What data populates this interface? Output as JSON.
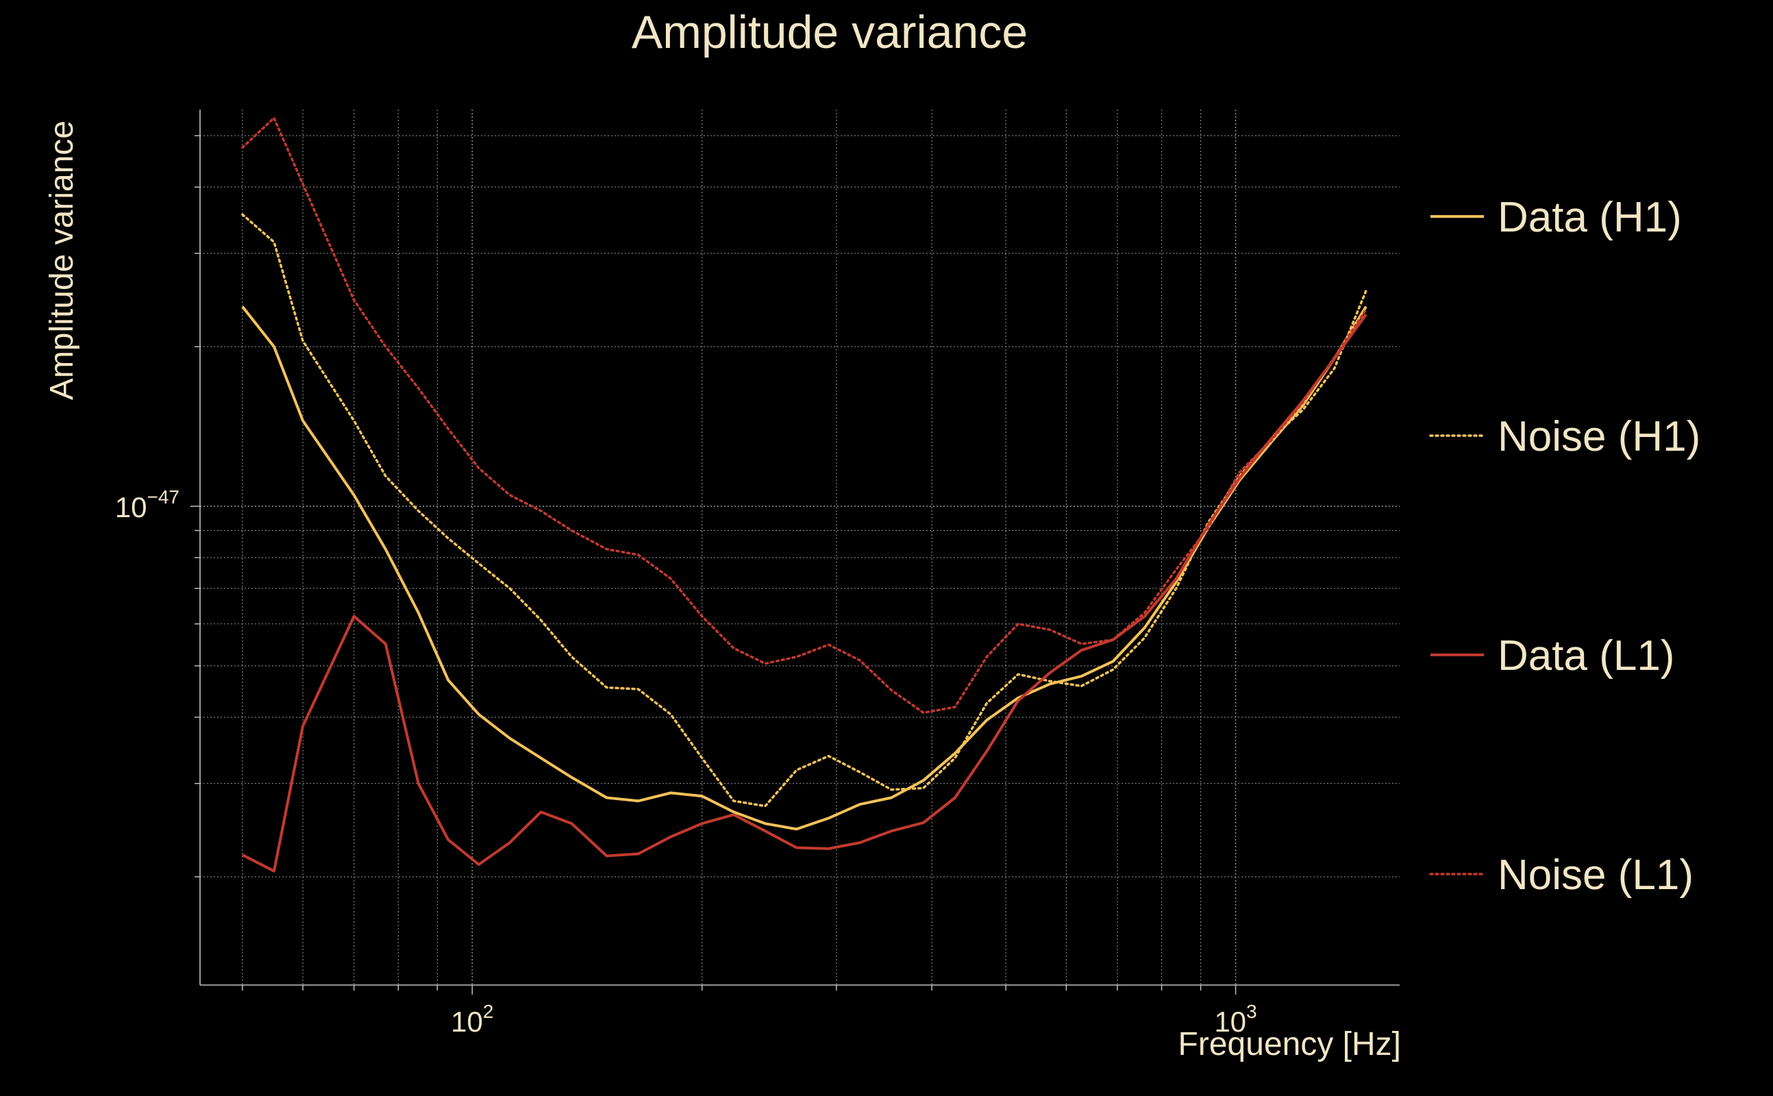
{
  "chart_data": {
    "type": "line",
    "title": "Amplitude variance",
    "xlabel": "Frequency [Hz]",
    "ylabel": "Amplitude variance",
    "x_scale": "log",
    "y_scale": "log",
    "xlim": [
      44,
      1640
    ],
    "ylim": [
      1.25e-48,
      5.6e-47
    ],
    "grid": true,
    "legend_position": "right",
    "x_ticks": [
      {
        "value": 100,
        "base": "10",
        "exp": "2"
      },
      {
        "value": 1000,
        "base": "10",
        "exp": "3"
      }
    ],
    "y_ticks": [
      {
        "value": 1e-47,
        "base": "10",
        "exp": "−47"
      }
    ],
    "x": [
      50,
      55,
      60,
      70,
      77,
      85,
      93,
      102,
      112,
      123,
      135,
      150,
      165,
      182,
      200,
      220,
      242,
      266,
      293,
      322,
      354,
      390,
      429,
      472,
      519,
      571,
      628,
      691,
      760,
      836,
      920,
      1012,
      1113,
      1225,
      1347,
      1482
    ],
    "series": [
      {
        "name": "Data (H1)",
        "color": "#f2c25a",
        "dash": "solid",
        "values": [
          2.38e-47,
          2e-47,
          1.45e-47,
          1.05e-47,
          8.3e-48,
          6.3e-48,
          4.7e-48,
          4.05e-48,
          3.65e-48,
          3.35e-48,
          3.08e-48,
          2.82e-48,
          2.78e-48,
          2.88e-48,
          2.84e-48,
          2.65e-48,
          2.52e-48,
          2.46e-48,
          2.58e-48,
          2.74e-48,
          2.82e-48,
          3.04e-48,
          3.42e-48,
          3.95e-48,
          4.35e-48,
          4.62e-48,
          4.78e-48,
          5.1e-48,
          5.9e-48,
          7.2e-48,
          9.1e-48,
          1.12e-47,
          1.32e-47,
          1.55e-47,
          1.9e-47,
          2.38e-47
        ]
      },
      {
        "name": "Noise (H1)",
        "color": "#f2c25a",
        "dash": "dotted",
        "values": [
          3.55e-47,
          3.15e-47,
          2.05e-47,
          1.45e-47,
          1.14e-47,
          9.8e-48,
          8.7e-48,
          7.8e-48,
          7e-48,
          6.1e-48,
          5.2e-48,
          4.55e-48,
          4.52e-48,
          4.05e-48,
          3.35e-48,
          2.78e-48,
          2.72e-48,
          3.18e-48,
          3.38e-48,
          3.15e-48,
          2.92e-48,
          2.94e-48,
          3.35e-48,
          4.25e-48,
          4.82e-48,
          4.68e-48,
          4.58e-48,
          4.92e-48,
          5.65e-48,
          7e-48,
          9.3e-48,
          1.14e-47,
          1.34e-47,
          1.52e-47,
          1.82e-47,
          2.55e-47
        ]
      },
      {
        "name": "Data (L1)",
        "color": "#c23a2e",
        "dash": "solid",
        "values": [
          2.2e-48,
          2.05e-48,
          3.85e-48,
          6.2e-48,
          5.5e-48,
          3e-48,
          2.35e-48,
          2.11e-48,
          2.32e-48,
          2.65e-48,
          2.52e-48,
          2.19e-48,
          2.21e-48,
          2.38e-48,
          2.52e-48,
          2.62e-48,
          2.44e-48,
          2.27e-48,
          2.26e-48,
          2.32e-48,
          2.44e-48,
          2.53e-48,
          2.82e-48,
          3.45e-48,
          4.3e-48,
          4.85e-48,
          5.35e-48,
          5.6e-48,
          6.2e-48,
          7.3e-48,
          9.2e-48,
          1.13e-47,
          1.34e-47,
          1.58e-47,
          1.9e-47,
          2.3e-47
        ]
      },
      {
        "name": "Noise (L1)",
        "color": "#c23a2e",
        "dash": "dotted",
        "values": [
          4.75e-47,
          5.4e-47,
          4.05e-47,
          2.45e-47,
          2e-47,
          1.67e-47,
          1.4e-47,
          1.18e-47,
          1.05e-47,
          9.8e-48,
          9e-48,
          8.3e-48,
          8.1e-48,
          7.3e-48,
          6.2e-48,
          5.4e-48,
          5.05e-48,
          5.2e-48,
          5.48e-48,
          5.12e-48,
          4.5e-48,
          4.08e-48,
          4.18e-48,
          5.2e-48,
          6e-48,
          5.85e-48,
          5.5e-48,
          5.6e-48,
          6.3e-48,
          7.6e-48,
          9.1e-48,
          1.16e-47,
          1.33e-47,
          1.57e-47,
          1.91e-47,
          2.35e-47
        ]
      }
    ],
    "colors": {
      "background": "#000000",
      "text": "#f2e6c6",
      "grid": "#8c8c8c",
      "axis": "#bfbfbf"
    }
  }
}
